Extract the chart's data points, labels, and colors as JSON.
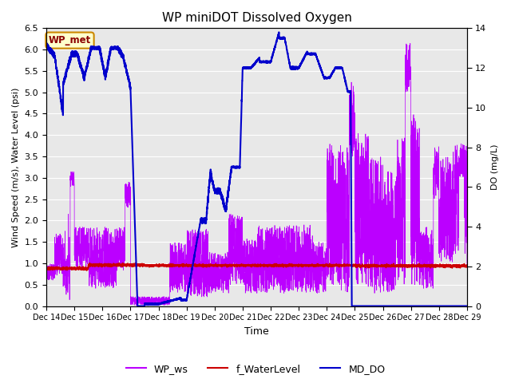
{
  "title": "WP miniDOT Dissolved Oxygen",
  "xlabel": "Time",
  "ylabel_left": "Wind Speed (m/s), Water Level (psi)",
  "ylabel_right": "DO (mg/L)",
  "xlim_days": [
    14,
    29
  ],
  "ylim_left": [
    0.0,
    6.5
  ],
  "ylim_right": [
    0,
    14
  ],
  "yticks_left": [
    0.0,
    0.5,
    1.0,
    1.5,
    2.0,
    2.5,
    3.0,
    3.5,
    4.0,
    4.5,
    5.0,
    5.5,
    6.0,
    6.5
  ],
  "yticks_right": [
    0,
    2,
    4,
    6,
    8,
    10,
    12,
    14
  ],
  "xtick_labels": [
    "Dec 14",
    "Dec 15",
    "Dec 16",
    "Dec 17",
    "Dec 18",
    "Dec 19",
    "Dec 20",
    "Dec 21",
    "Dec 22",
    "Dec 23",
    "Dec 24",
    "Dec 25",
    "Dec 26",
    "Dec 27",
    "Dec 28",
    "Dec 29"
  ],
  "color_ws": "#bb00ff",
  "color_wl": "#cc0000",
  "color_do": "#0000cc",
  "annotation_text": "WP_met",
  "annotation_bg": "#ffffcc",
  "annotation_edge": "#cc8800",
  "legend_labels": [
    "WP_ws",
    "f_WaterLevel",
    "MD_DO"
  ],
  "legend_colors": [
    "#bb00ff",
    "#cc0000",
    "#0000cc"
  ],
  "background_color": "#e8e8e8",
  "grid_color": "#ffffff"
}
